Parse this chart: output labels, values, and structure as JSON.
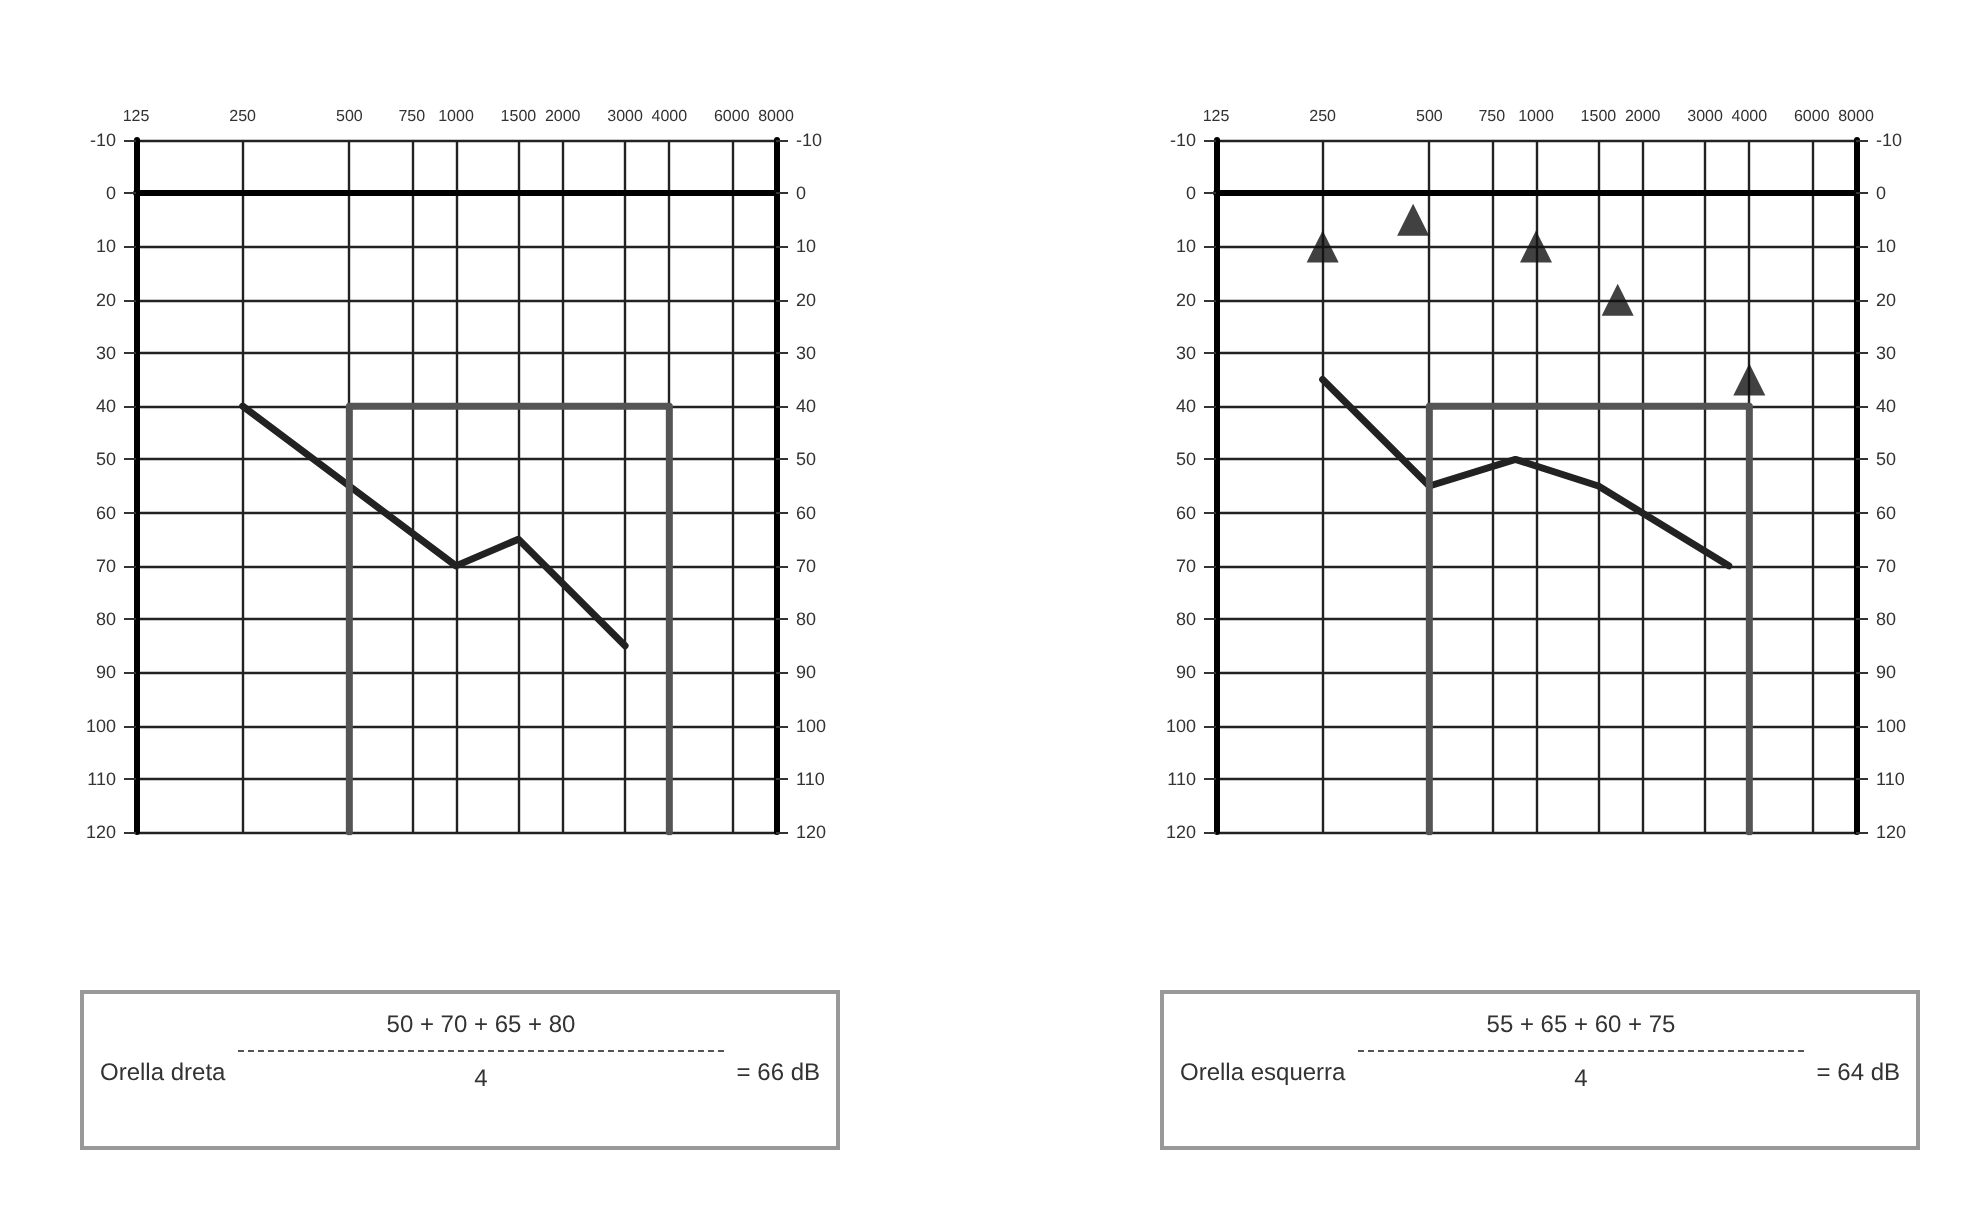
{
  "chart_data": [
    {
      "type": "line",
      "xlim": [
        125,
        8000
      ],
      "xticks": [
        125,
        250,
        500,
        750,
        1000,
        1500,
        2000,
        3000,
        4000,
        6000,
        8000
      ],
      "ylim": [
        120,
        -10
      ],
      "yticks": [
        -10,
        0,
        10,
        20,
        30,
        40,
        50,
        60,
        70,
        80,
        90,
        100,
        110,
        120
      ],
      "y2lim": [
        120,
        -10
      ],
      "y2ticks": [
        -10,
        0,
        10,
        20,
        30,
        40,
        50,
        60,
        70,
        80,
        90,
        100,
        110,
        120
      ],
      "log": "x",
      "grid": true,
      "series": [
        {
          "color": "#222222",
          "marker": "none",
          "line_style": "solid",
          "x": [
            250,
            500,
            1000,
            1500,
            3000
          ],
          "values": [
            40,
            55,
            70,
            65,
            85
          ]
        },
        {
          "color": "#555555",
          "marker": "none",
          "line_style": "solid",
          "x": [
            500,
            500,
            4000,
            4000
          ],
          "values": [
            120,
            40,
            40,
            120
          ]
        }
      ],
      "annotations": [
        "Orella dreta",
        "50 + 70 + 65 + 80",
        "4",
        "= 66 dB"
      ]
    },
    {
      "type": "line",
      "xlim": [
        125,
        8000
      ],
      "xticks": [
        125,
        250,
        500,
        750,
        1000,
        1500,
        2000,
        3000,
        4000,
        6000,
        8000
      ],
      "ylim": [
        120,
        -10
      ],
      "yticks": [
        -10,
        0,
        10,
        20,
        30,
        40,
        50,
        60,
        70,
        80,
        90,
        100,
        110,
        120
      ],
      "y2lim": [
        120,
        -10
      ],
      "y2ticks": [
        -10,
        0,
        10,
        20,
        30,
        40,
        50,
        60,
        70,
        80,
        90,
        100,
        110,
        120
      ],
      "log": "x",
      "grid": true,
      "series": [
        {
          "color": "#222222",
          "marker": "none",
          "line_style": "solid",
          "x": [
            250,
            500,
            875,
            1500,
            3500
          ],
          "values": [
            35,
            55,
            50,
            55,
            70
          ]
        },
        {
          "color": "#555555",
          "marker": "none",
          "line_style": "solid",
          "x": [
            500,
            500,
            4000,
            4000
          ],
          "values": [
            120,
            40,
            40,
            120
          ]
        },
        {
          "type": "scatter",
          "color": "#111111",
          "marker": "triangle",
          "x": [
            250,
            450,
            1000,
            1700,
            4000
          ],
          "values": [
            10,
            5,
            10,
            20,
            35
          ]
        }
      ],
      "annotations": [
        "Orella esquerra",
        "55 + 65 + 60 + 75",
        "4",
        "= 64 dB"
      ]
    }
  ]
}
